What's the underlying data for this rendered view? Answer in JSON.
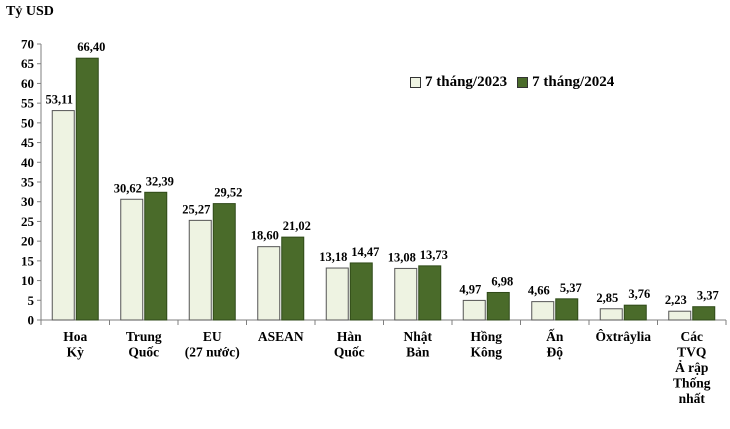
{
  "chart_data": {
    "type": "bar",
    "unit_label": "Tỷ USD",
    "ylim": [
      0,
      70
    ],
    "yticks": [
      0,
      5,
      10,
      15,
      20,
      25,
      30,
      35,
      40,
      45,
      50,
      55,
      60,
      65,
      70
    ],
    "grid": false,
    "legend_position": "top-right",
    "categories": [
      [
        "Hoa",
        "Kỳ"
      ],
      [
        "Trung",
        "Quốc"
      ],
      [
        "EU",
        "(27 nước)"
      ],
      [
        "ASEAN"
      ],
      [
        "Hàn",
        "Quốc"
      ],
      [
        "Nhật",
        "Bản"
      ],
      [
        "Hồng",
        "Kông"
      ],
      [
        "Ấn",
        "Độ"
      ],
      [
        "Ôxtrâylia"
      ],
      [
        "Các",
        "TVQ",
        "Ả rập",
        "Thống",
        "nhất"
      ]
    ],
    "series": [
      {
        "name": "7 tháng/2023",
        "color": "#eef3e2",
        "values": [
          53.11,
          30.62,
          25.27,
          18.6,
          13.18,
          13.08,
          4.97,
          4.66,
          2.85,
          2.23
        ],
        "labels": [
          "53,11",
          "30,62",
          "25,27",
          "18,60",
          "13,18",
          "13,08",
          "4,97",
          "4,66",
          "2,85",
          "2,23"
        ]
      },
      {
        "name": "7 tháng/2024",
        "color": "#4a6b2a",
        "values": [
          66.4,
          32.39,
          29.52,
          21.02,
          14.47,
          13.73,
          6.98,
          5.37,
          3.76,
          3.37
        ],
        "labels": [
          "66,40",
          "32,39",
          "29,52",
          "21,02",
          "14,47",
          "13,73",
          "6,98",
          "5,37",
          "3,76",
          "3,37"
        ]
      }
    ]
  }
}
